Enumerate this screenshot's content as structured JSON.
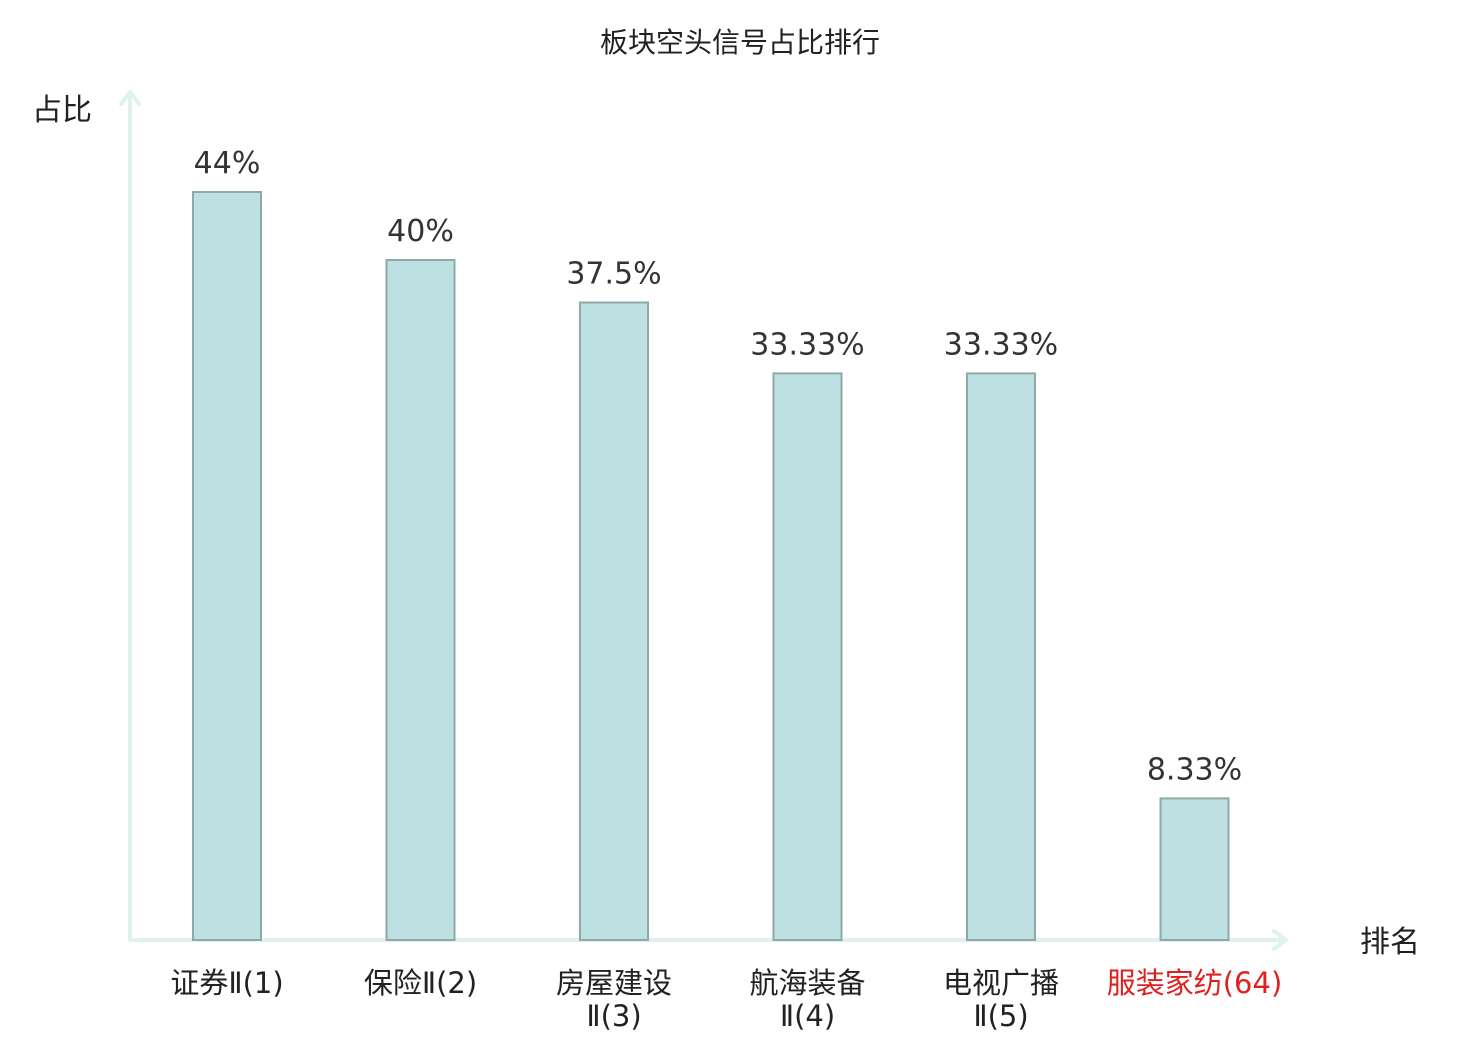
{
  "chart_data": {
    "type": "bar",
    "title": "板块空头信号占比排行",
    "ylabel": "占比",
    "xlabel": "排名",
    "ylim": [
      0,
      50
    ],
    "grid": false,
    "legend": "none",
    "categories": [
      [
        "证券Ⅱ(1)"
      ],
      [
        "保险Ⅱ(2)"
      ],
      [
        "房屋建设",
        "Ⅱ(3)"
      ],
      [
        "航海装备",
        "Ⅱ(4)"
      ],
      [
        "电视广播",
        "Ⅱ(5)"
      ],
      [
        "服装家纺(64)"
      ]
    ],
    "values": [
      44,
      40,
      37.5,
      33.33,
      33.33,
      8.33
    ],
    "value_labels": [
      "44%",
      "40%",
      "37.5%",
      "33.33%",
      "33.33%",
      "8.33%"
    ],
    "highlight_index": 5,
    "colors": {
      "bar_fill": "#bde0e2",
      "bar_stroke": "#8fa8a8",
      "axis": "#e0f2ef",
      "label": "#222222",
      "highlight": "#e0201e"
    }
  }
}
